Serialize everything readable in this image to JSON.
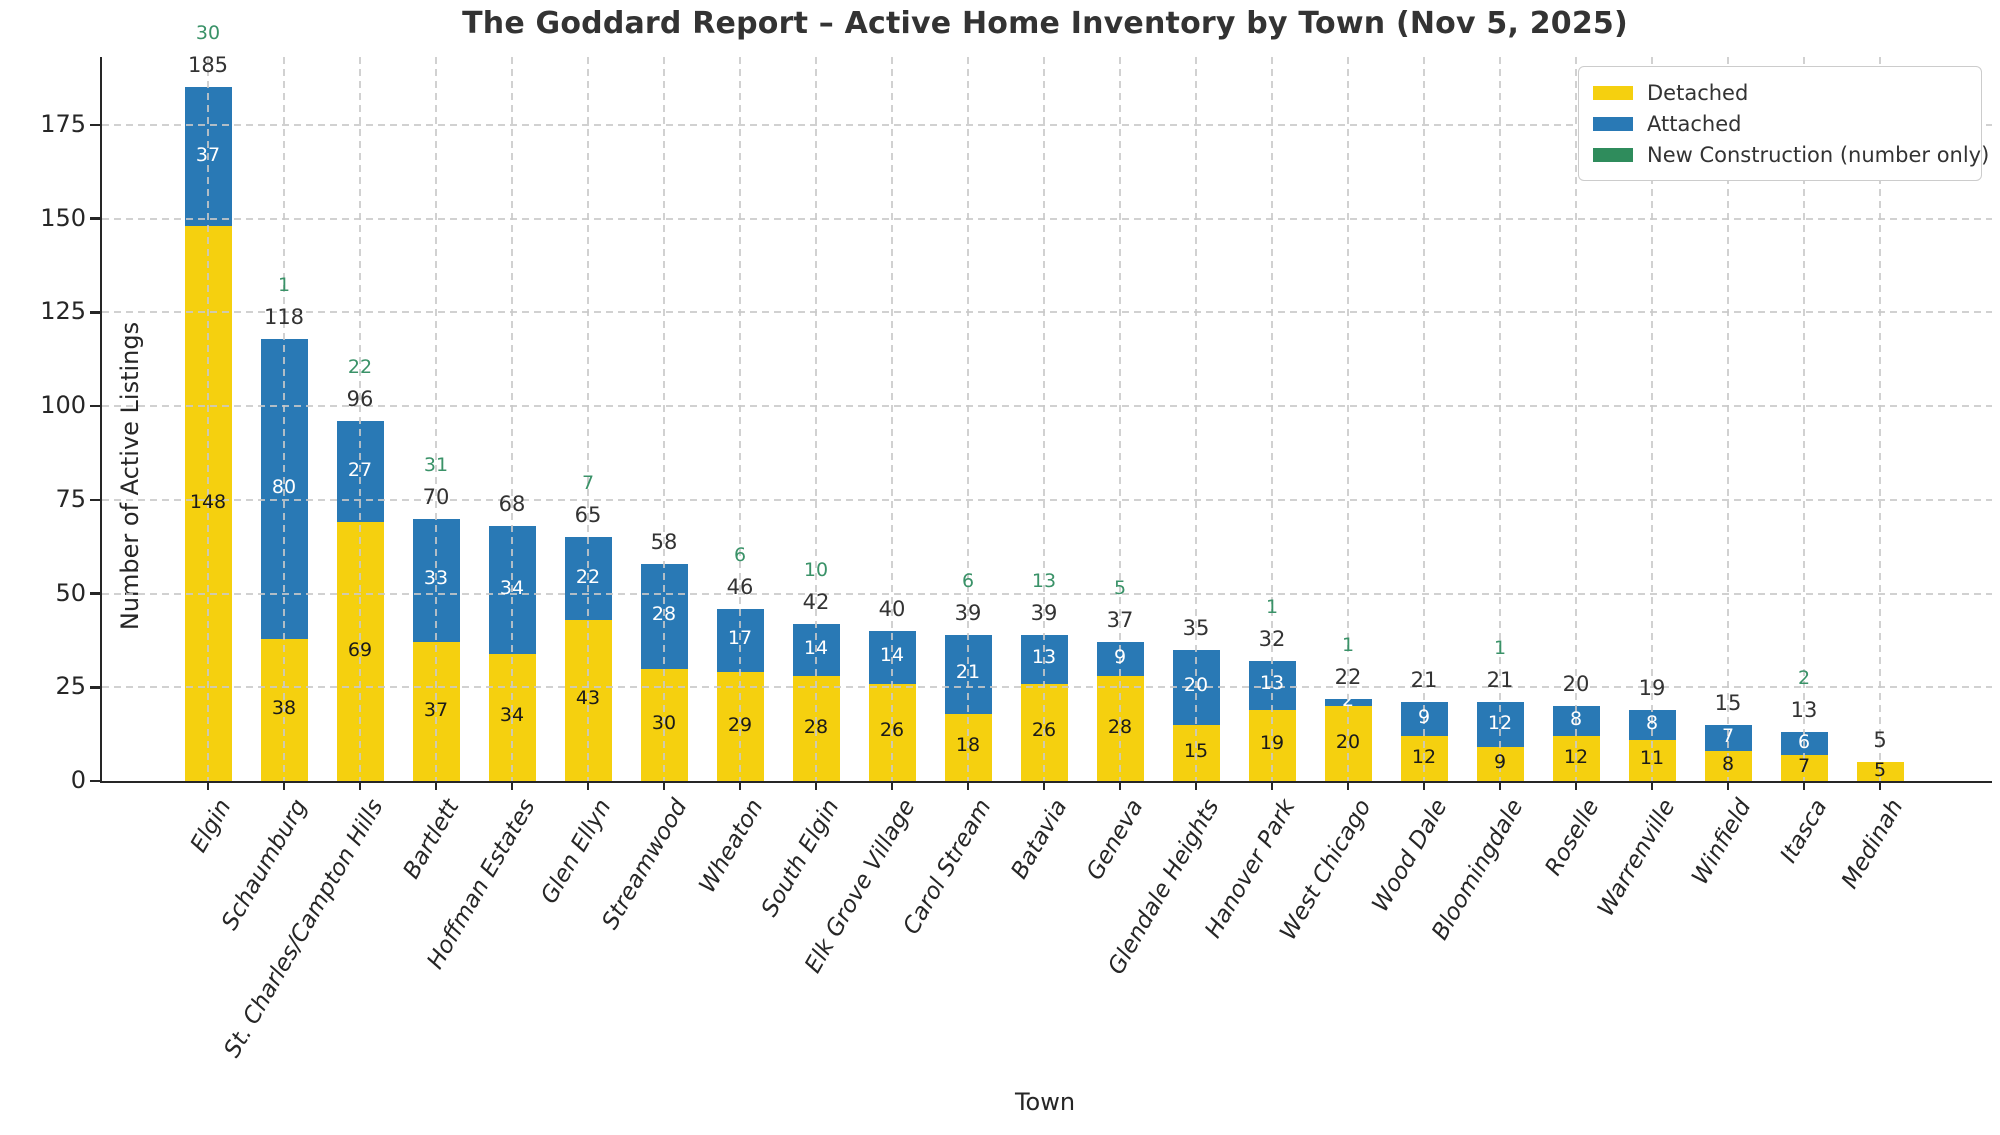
{
  "title": "The Goddard Report – Active Home Inventory by Town (Nov 5, 2025)",
  "chart_data": {
    "type": "bar",
    "stacked": true,
    "title": "The Goddard Report – Active Home Inventory by Town (Nov 5, 2025)",
    "xlabel": "Town",
    "ylabel": "Number of Active Listings",
    "ylim": [
      0,
      193
    ],
    "yticks": [
      0,
      25,
      50,
      75,
      100,
      125,
      150,
      175
    ],
    "grid": true,
    "legend_position": "upper right",
    "categories": [
      "Elgin",
      "Schaumburg",
      "St. Charles/Campton Hills",
      "Bartlett",
      "Hoffman Estates",
      "Glen Ellyn",
      "Streamwood",
      "Wheaton",
      "South Elgin",
      "Elk Grove Village",
      "Carol Stream",
      "Batavia",
      "Geneva",
      "Glendale Heights",
      "Hanover Park",
      "West Chicago",
      "Wood Dale",
      "Bloomingdale",
      "Roselle",
      "Warrenville",
      "Winfield",
      "Itasca",
      "Medinah"
    ],
    "series": [
      {
        "name": "Detached",
        "color": "#F5D00F",
        "label_color": "#1a1a1a",
        "values": [
          148,
          38,
          69,
          37,
          34,
          43,
          30,
          29,
          28,
          26,
          18,
          26,
          28,
          15,
          19,
          20,
          12,
          9,
          12,
          11,
          8,
          7,
          5
        ]
      },
      {
        "name": "Attached",
        "color": "#2979B5",
        "label_color": "#ffffff",
        "values": [
          37,
          80,
          27,
          33,
          34,
          22,
          28,
          17,
          14,
          14,
          21,
          13,
          9,
          20,
          13,
          2,
          9,
          12,
          8,
          8,
          7,
          6,
          0
        ]
      }
    ],
    "totals": [
      185,
      118,
      96,
      70,
      68,
      65,
      58,
      46,
      42,
      40,
      39,
      39,
      37,
      35,
      32,
      22,
      21,
      21,
      20,
      19,
      15,
      13,
      5
    ],
    "new_construction": [
      30,
      1,
      22,
      31,
      null,
      7,
      null,
      6,
      10,
      null,
      6,
      13,
      5,
      null,
      1,
      1,
      null,
      1,
      null,
      null,
      null,
      2,
      null
    ],
    "legend": [
      {
        "label": "Detached",
        "color": "#F5D00F"
      },
      {
        "label": "Attached",
        "color": "#2979B5"
      },
      {
        "label": "New Construction (number only)",
        "color": "#2F8C5C"
      }
    ]
  },
  "colors": {
    "detached": "#F5D00F",
    "attached": "#2979B5",
    "new_construction_text": "#3A9268",
    "grid": "#c9c9c9",
    "spine": "#262626",
    "text": "#333333"
  }
}
